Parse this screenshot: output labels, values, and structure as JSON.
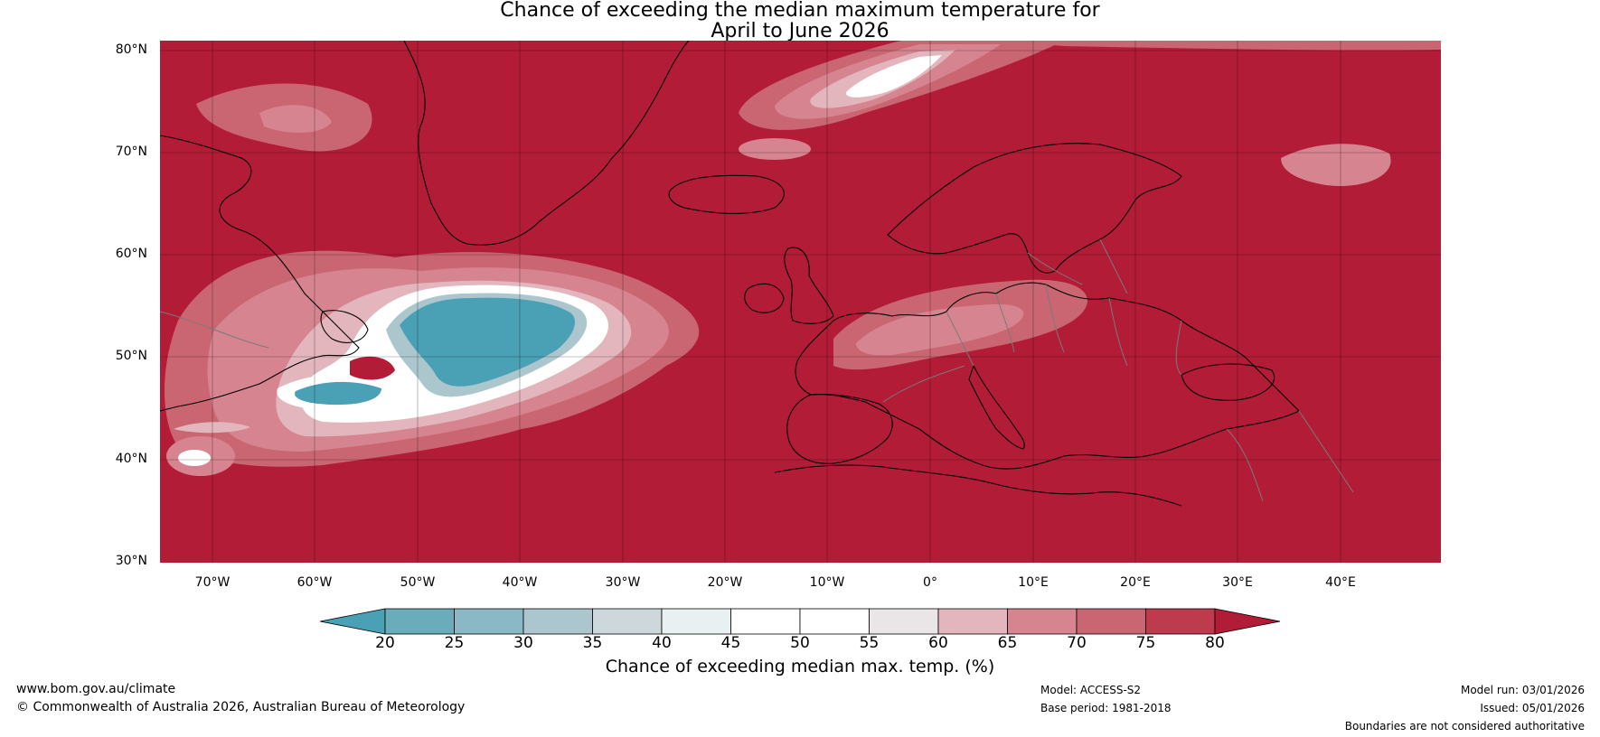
{
  "title": {
    "line1": "Chance of exceeding the median maximum temperature for",
    "line2": "April to June 2026"
  },
  "lat_labels": [
    "80°N",
    "70°N",
    "60°N",
    "50°N",
    "40°N",
    "30°N"
  ],
  "lon_labels": [
    "70°W",
    "60°W",
    "50°W",
    "40°W",
    "30°W",
    "20°W",
    "10°W",
    "0°",
    "10°E",
    "20°E",
    "30°E",
    "40°E"
  ],
  "colorbar": {
    "ticks": [
      "20",
      "25",
      "30",
      "35",
      "40",
      "45",
      "50",
      "55",
      "60",
      "65",
      "70",
      "75",
      "80"
    ],
    "label": "Chance of exceeding median max. temp. (%)",
    "colors": [
      "#4aa0b5",
      "#6aacba",
      "#8ab8c4",
      "#abc6cd",
      "#ccd8dc",
      "#e8f0f1",
      "#ffffff",
      "#ffffff",
      "#eae6e7",
      "#e3b6bd",
      "#d6848f",
      "#c96672",
      "#be3a4d",
      "#b21c37"
    ]
  },
  "map": {
    "ocean_land_color": "#b21c37",
    "regions": [
      "North Atlantic cool anomaly",
      "Iceland",
      "Greenland",
      "Europe",
      "Labrador and Newfoundland"
    ]
  },
  "footer": {
    "url": "www.bom.gov.au/climate",
    "copyright": "© Commonwealth of Australia 2026, Australian Bureau of Meteorology",
    "model": "Model: ACCESS-S2",
    "base_period": "Base period: 1981-2018",
    "model_run": "Model run: 03/01/2026",
    "issued": "Issued: 05/01/2026",
    "disclaimer": "Boundaries are not considered authoritative"
  }
}
